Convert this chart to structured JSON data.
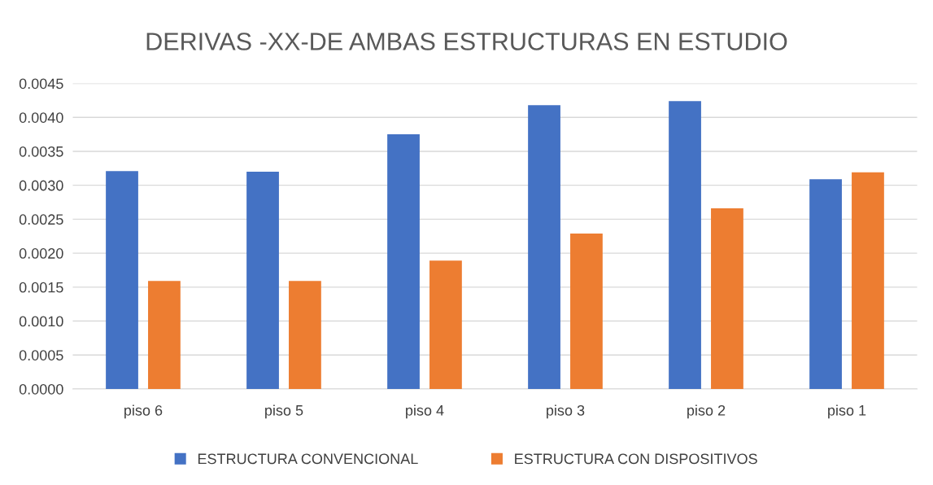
{
  "chart_data": {
    "type": "bar",
    "title": "DERIVAS -XX-DE AMBAS ESTRUCTURAS EN ESTUDIO",
    "categories": [
      "piso 6",
      "piso 5",
      "piso 4",
      "piso 3",
      "piso 2",
      "piso 1"
    ],
    "series": [
      {
        "name": "ESTRUCTURA CONVENCIONAL",
        "color": "#4472c4",
        "values": [
          0.00321,
          0.0032,
          0.00375,
          0.00418,
          0.00424,
          0.00309
        ]
      },
      {
        "name": "ESTRUCTURA CON DISPOSITIVOS",
        "color": "#ed7d31",
        "values": [
          0.00159,
          0.00159,
          0.00189,
          0.00229,
          0.00266,
          0.00319
        ]
      }
    ],
    "ylim": [
      0,
      0.0045
    ],
    "yticks": [
      {
        "value": 0,
        "label": "0.0000"
      },
      {
        "value": 0.0005,
        "label": "0.0005"
      },
      {
        "value": 0.001,
        "label": "0.0010"
      },
      {
        "value": 0.0015,
        "label": "0.0015"
      },
      {
        "value": 0.002,
        "label": "0.0020"
      },
      {
        "value": 0.0025,
        "label": "0.0025"
      },
      {
        "value": 0.003,
        "label": "0.0030"
      },
      {
        "value": 0.0035,
        "label": "0.0035"
      },
      {
        "value": 0.004,
        "label": "0.0040"
      },
      {
        "value": 0.0045,
        "label": "0.0045"
      }
    ],
    "grid": "y",
    "legend": "bottom"
  }
}
